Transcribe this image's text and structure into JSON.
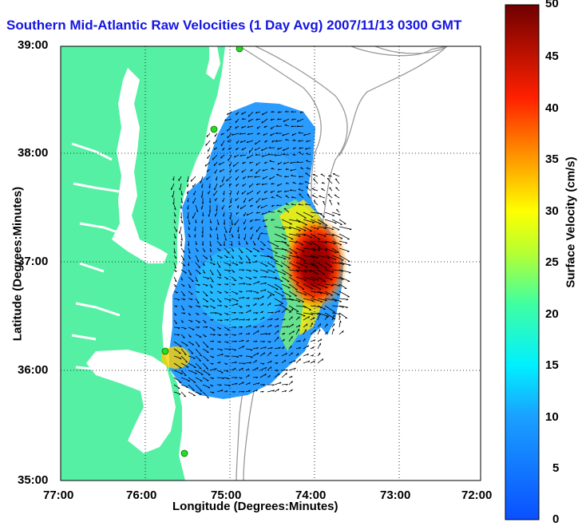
{
  "title": "Southern Mid-Atlantic Raw Velocities (1 Day Avg) 2007/11/13 0300 GMT",
  "x_axis": {
    "label": "Longitude (Degrees:Minutes)",
    "ticks": [
      "77:00",
      "76:00",
      "75:00",
      "74:00",
      "73:00",
      "72:00"
    ]
  },
  "y_axis": {
    "label": "Latitude (Degrees:Minutes)",
    "ticks": [
      "39:00",
      "38:00",
      "37:00",
      "36:00",
      "35:00"
    ]
  },
  "colorbar": {
    "label": "Surface Velocity (cm/s)",
    "ticks": [
      "50",
      "45",
      "40",
      "35",
      "30",
      "25",
      "20",
      "15",
      "10",
      "5",
      "0"
    ],
    "min": 0,
    "max": 50
  },
  "colors": {
    "land": "#55f0a4",
    "title": "#1515e0",
    "station": "#22dd22",
    "bathymetry": "#999999"
  },
  "map_extent": {
    "lon_west": 77,
    "lon_east": 72,
    "lat_south": 35,
    "lat_north": 39
  },
  "grid": "dotted"
}
